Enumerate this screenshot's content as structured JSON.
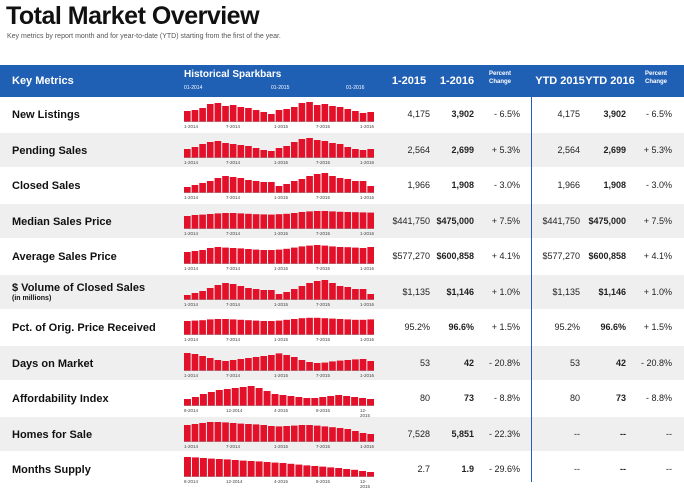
{
  "title": "Total Market Overview",
  "subtitle": "Key metrics by report month and for year-to-date (YTD) starting from the first of the year.",
  "header": {
    "metric": "Key Metrics",
    "spark": "Historical Sparkbars",
    "spark_years": [
      "01-2014",
      "01-2015",
      "01-2016"
    ],
    "col1": "1-2015",
    "col2": "1-2016",
    "pct": "Percent Change",
    "ytd1": "YTD 2015",
    "ytd2": "YTD 2016",
    "ytdpct": "Percent Change"
  },
  "colors": {
    "header_bg": "#1f5fb4",
    "bar": "#e3102a",
    "row_alt": "#efefef"
  },
  "rows": [
    {
      "label": "New Listings",
      "sub": "",
      "v1": "4,175",
      "v2": "3,902",
      "pct": "- 6.5%",
      "y1": "4,175",
      "y2": "3,902",
      "ypct": "- 6.5%",
      "ticks": [
        "1-2014",
        "7-2014",
        "1-2015",
        "7-2015",
        "1-2016"
      ],
      "bars": [
        55,
        60,
        70,
        90,
        95,
        80,
        85,
        75,
        70,
        60,
        50,
        40,
        60,
        65,
        75,
        95,
        100,
        85,
        90,
        80,
        75,
        65,
        55,
        45,
        50
      ]
    },
    {
      "label": "Pending Sales",
      "sub": "",
      "v1": "2,564",
      "v2": "2,699",
      "pct": "+ 5.3%",
      "y1": "2,564",
      "y2": "2,699",
      "ypct": "+ 5.3%",
      "ticks": [
        "1-2014",
        "7-2014",
        "1-2015",
        "7-2015",
        "1-2016"
      ],
      "bars": [
        45,
        55,
        70,
        80,
        85,
        75,
        70,
        65,
        60,
        50,
        40,
        35,
        50,
        60,
        80,
        95,
        100,
        90,
        85,
        75,
        70,
        55,
        45,
        40,
        45
      ]
    },
    {
      "label": "Closed Sales",
      "sub": "",
      "v1": "1,966",
      "v2": "1,908",
      "pct": "- 3.0%",
      "y1": "1,966",
      "y2": "1,908",
      "ypct": "- 3.0%",
      "ticks": [
        "1-2014",
        "7-2014",
        "1-2015",
        "7-2015",
        "1-2016"
      ],
      "bars": [
        30,
        40,
        50,
        60,
        75,
        85,
        80,
        75,
        65,
        60,
        55,
        55,
        35,
        45,
        60,
        70,
        85,
        95,
        100,
        85,
        75,
        70,
        60,
        60,
        35
      ]
    },
    {
      "label": "Median Sales Price",
      "sub": "",
      "v1": "$441,750",
      "v2": "$475,000",
      "pct": "+ 7.5%",
      "y1": "$441,750",
      "y2": "$475,000",
      "ypct": "+ 7.5%",
      "ticks": [
        "1-2014",
        "7-2014",
        "1-2015",
        "7-2015",
        "1-2016"
      ],
      "bars": [
        65,
        70,
        72,
        75,
        78,
        80,
        80,
        78,
        76,
        74,
        73,
        72,
        74,
        76,
        80,
        85,
        88,
        90,
        90,
        88,
        86,
        85,
        84,
        83,
        82
      ]
    },
    {
      "label": "Average Sales Price",
      "sub": "",
      "v1": "$577,270",
      "v2": "$600,858",
      "pct": "+ 4.1%",
      "y1": "$577,270",
      "y2": "$600,858",
      "ypct": "+ 4.1%",
      "ticks": [
        "1-2014",
        "7-2014",
        "1-2015",
        "7-2015",
        "1-2016"
      ],
      "bars": [
        60,
        65,
        70,
        80,
        85,
        82,
        80,
        78,
        75,
        72,
        70,
        70,
        72,
        76,
        82,
        88,
        92,
        95,
        92,
        88,
        85,
        84,
        82,
        80,
        85
      ]
    },
    {
      "label": "$ Volume of Closed Sales",
      "sub": "(in millions)",
      "v1": "$1,135",
      "v2": "$1,146",
      "pct": "+ 1.0%",
      "y1": "$1,135",
      "y2": "$1,146",
      "ypct": "+ 1.0%",
      "ticks": [
        "1-2014",
        "7-2014",
        "1-2015",
        "7-2015",
        "1-2016"
      ],
      "bars": [
        25,
        35,
        45,
        60,
        75,
        85,
        80,
        70,
        60,
        55,
        50,
        50,
        30,
        40,
        55,
        70,
        85,
        95,
        100,
        85,
        70,
        65,
        55,
        55,
        30
      ]
    },
    {
      "label": "Pct. of Orig. Price Received",
      "sub": "",
      "v1": "95.2%",
      "v2": "96.6%",
      "pct": "+ 1.5%",
      "y1": "95.2%",
      "y2": "96.6%",
      "ypct": "+ 1.5%",
      "ticks": [
        "1-2014",
        "7-2014",
        "1-2015",
        "7-2015",
        "1-2016"
      ],
      "bars": [
        70,
        72,
        74,
        78,
        80,
        80,
        78,
        76,
        74,
        72,
        70,
        70,
        72,
        76,
        80,
        84,
        86,
        86,
        84,
        82,
        80,
        78,
        76,
        76,
        78
      ]
    },
    {
      "label": "Days on Market",
      "sub": "",
      "v1": "53",
      "v2": "42",
      "pct": "- 20.8%",
      "y1": "53",
      "y2": "42",
      "ypct": "- 20.8%",
      "ticks": [
        "1-2014",
        "7-2014",
        "1-2015",
        "7-2015",
        "1-2016"
      ],
      "bars": [
        90,
        85,
        75,
        65,
        55,
        50,
        55,
        60,
        65,
        70,
        75,
        80,
        88,
        80,
        70,
        55,
        45,
        40,
        42,
        48,
        52,
        55,
        58,
        60,
        50
      ]
    },
    {
      "label": "Affordability Index",
      "sub": "",
      "v1": "80",
      "v2": "73",
      "pct": "- 8.8%",
      "y1": "80",
      "y2": "73",
      "ypct": "- 8.8%",
      "ticks": [
        "8-2014",
        "12-2014",
        "4-2015",
        "8-2015",
        "12-2015"
      ],
      "bars": [
        35,
        45,
        60,
        70,
        80,
        85,
        90,
        95,
        100,
        90,
        75,
        60,
        55,
        50,
        45,
        40,
        40,
        45,
        50,
        55,
        50,
        45,
        40,
        35
      ]
    },
    {
      "label": "Homes for Sale",
      "sub": "",
      "v1": "7,528",
      "v2": "5,851",
      "pct": "- 22.3%",
      "y1": "--",
      "y2": "--",
      "ypct": "--",
      "ticks": [
        "1-2014",
        "7-2014",
        "1-2015",
        "7-2015",
        "1-2016"
      ],
      "bars": [
        85,
        90,
        95,
        100,
        100,
        98,
        95,
        92,
        90,
        88,
        85,
        80,
        78,
        80,
        82,
        85,
        85,
        82,
        78,
        74,
        70,
        65,
        55,
        45,
        40
      ]
    },
    {
      "label": "Months Supply",
      "sub": "",
      "v1": "2.7",
      "v2": "1.9",
      "pct": "- 29.6%",
      "y1": "--",
      "y2": "--",
      "ypct": "--",
      "ticks": [
        "8-2014",
        "12-2014",
        "4-2015",
        "8-2015",
        "12-2015"
      ],
      "bars": [
        100,
        98,
        95,
        92,
        90,
        88,
        85,
        82,
        80,
        78,
        75,
        72,
        70,
        66,
        62,
        58,
        55,
        52,
        48,
        45,
        40,
        36,
        30,
        25
      ]
    }
  ]
}
